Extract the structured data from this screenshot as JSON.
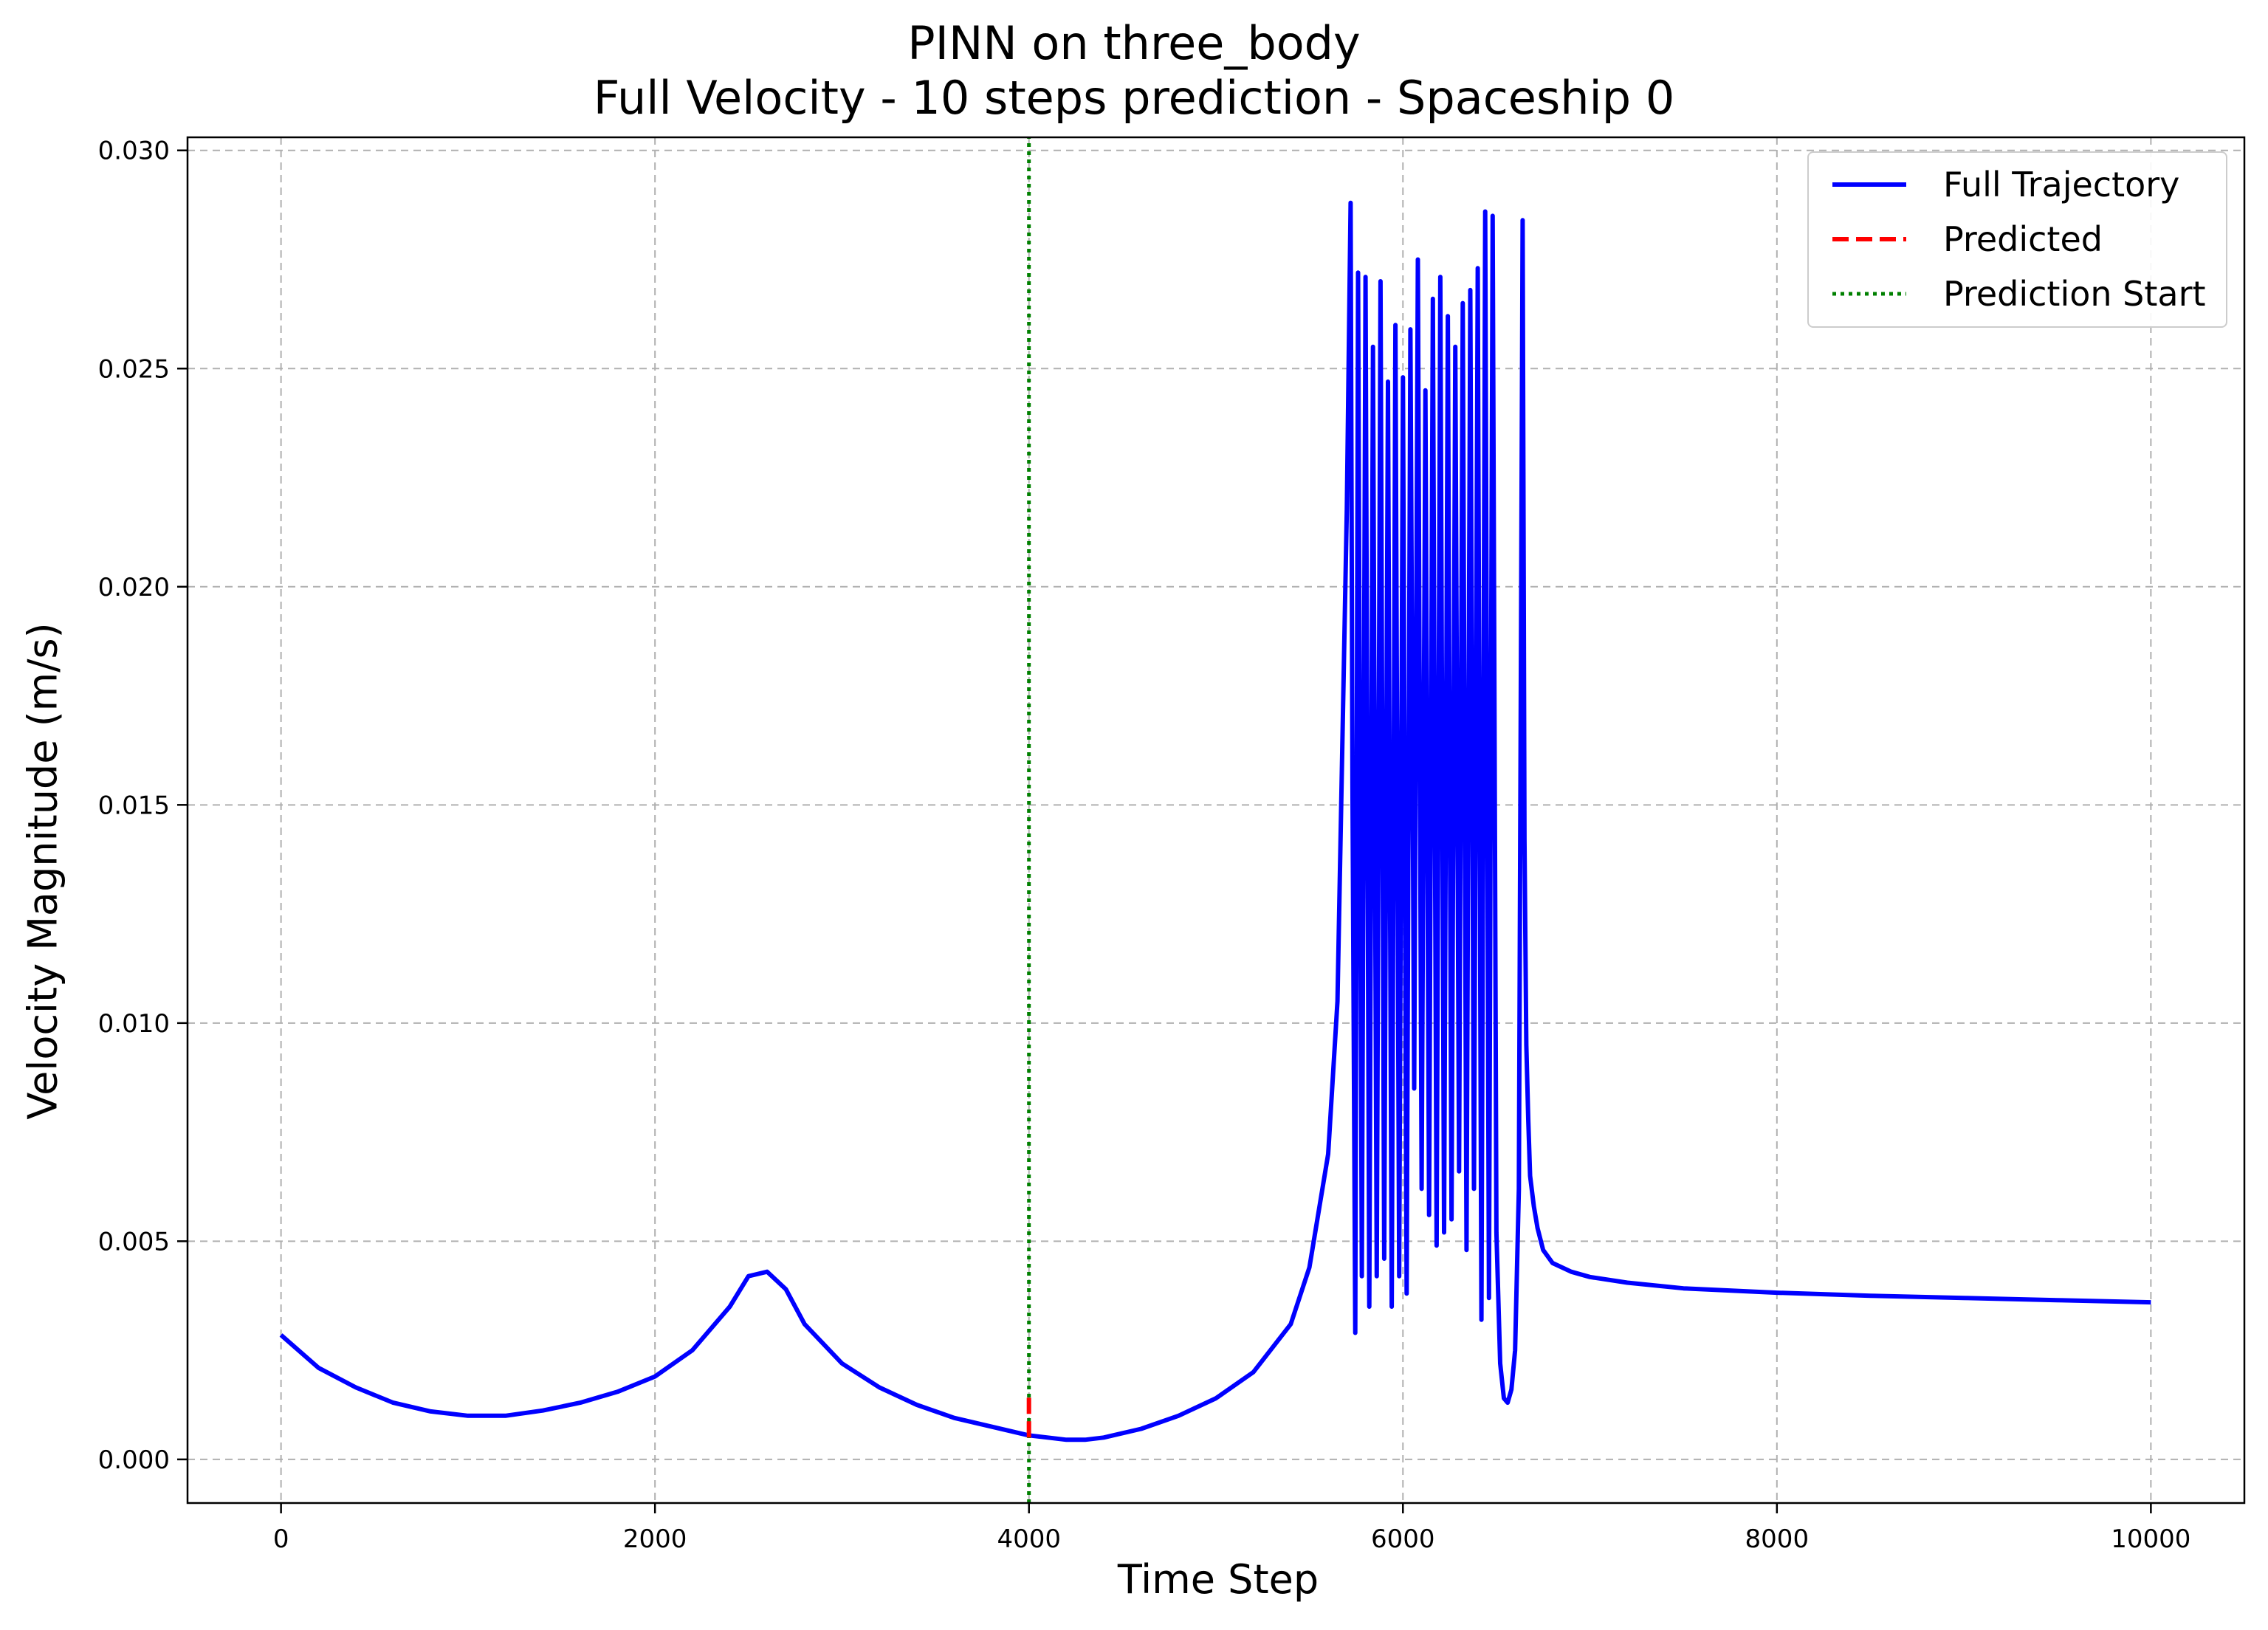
{
  "chart_data": {
    "type": "line",
    "title": "PINN on three_body",
    "subtitle": "Full Velocity - 10 steps prediction - Spaceship 0",
    "xlabel": "Time Step",
    "ylabel": "Velocity Magnitude (m/s)",
    "xlim": [
      -500,
      10500
    ],
    "ylim": [
      -0.001,
      0.0303
    ],
    "xticks": [
      0,
      2000,
      4000,
      6000,
      8000,
      10000
    ],
    "xtick_labels": [
      "0",
      "2000",
      "4000",
      "6000",
      "8000",
      "10000"
    ],
    "yticks": [
      0.0,
      0.005,
      0.01,
      0.015,
      0.02,
      0.025,
      0.03
    ],
    "ytick_labels": [
      "0.000",
      "0.005",
      "0.010",
      "0.015",
      "0.020",
      "0.025",
      "0.030"
    ],
    "grid": true,
    "legend_position": "top-right",
    "series": [
      {
        "name": "Full Trajectory",
        "style": "solid",
        "color": "#0000ff",
        "x": [
          0,
          200,
          400,
          600,
          800,
          1000,
          1200,
          1400,
          1600,
          1800,
          2000,
          2200,
          2400,
          2500,
          2600,
          2700,
          2800,
          3000,
          3200,
          3400,
          3600,
          3800,
          4000,
          4100,
          4200,
          4300,
          4400,
          4600,
          4800,
          5000,
          5200,
          5400,
          5500,
          5600,
          5650,
          5700,
          5720,
          5730,
          5745,
          5760,
          5780,
          5800,
          5820,
          5840,
          5860,
          5880,
          5900,
          5920,
          5940,
          5960,
          5980,
          6000,
          6020,
          6040,
          6060,
          6080,
          6100,
          6120,
          6140,
          6160,
          6180,
          6200,
          6220,
          6240,
          6260,
          6280,
          6300,
          6320,
          6340,
          6360,
          6380,
          6400,
          6420,
          6440,
          6460,
          6480,
          6500,
          6520,
          6540,
          6560,
          6580,
          6600,
          6620,
          6640,
          6650,
          6660,
          6670,
          6680,
          6700,
          6720,
          6750,
          6800,
          6900,
          7000,
          7200,
          7500,
          8000,
          8500,
          9000,
          9500,
          10000
        ],
        "y": [
          0.00285,
          0.0021,
          0.00165,
          0.0013,
          0.0011,
          0.001,
          0.001,
          0.00112,
          0.0013,
          0.00155,
          0.0019,
          0.0025,
          0.0035,
          0.0042,
          0.0043,
          0.0039,
          0.0031,
          0.0022,
          0.00165,
          0.00125,
          0.00095,
          0.00075,
          0.00055,
          0.0005,
          0.00045,
          0.00045,
          0.0005,
          0.0007,
          0.001,
          0.0014,
          0.002,
          0.0031,
          0.0044,
          0.007,
          0.0105,
          0.0218,
          0.0288,
          0.0155,
          0.0029,
          0.0272,
          0.0042,
          0.0271,
          0.0035,
          0.0255,
          0.0042,
          0.027,
          0.0046,
          0.0247,
          0.0035,
          0.026,
          0.0042,
          0.0248,
          0.0038,
          0.0259,
          0.0085,
          0.0275,
          0.0062,
          0.0245,
          0.0056,
          0.0266,
          0.0049,
          0.0271,
          0.0052,
          0.0262,
          0.0055,
          0.0255,
          0.0066,
          0.0265,
          0.0048,
          0.0268,
          0.0062,
          0.0273,
          0.0032,
          0.0286,
          0.0037,
          0.0285,
          0.0052,
          0.0022,
          0.0014,
          0.0013,
          0.0016,
          0.0025,
          0.0062,
          0.0284,
          0.0142,
          0.0095,
          0.0078,
          0.0065,
          0.0058,
          0.0053,
          0.0048,
          0.0045,
          0.0043,
          0.00418,
          0.00405,
          0.00392,
          0.00382,
          0.00375,
          0.0037,
          0.00365,
          0.0036
        ]
      },
      {
        "name": "Predicted",
        "style": "dashed",
        "color": "#ff0000",
        "x": [
          4000,
          4001,
          4002,
          4003,
          4004,
          4005,
          4006,
          4007,
          4008,
          4009,
          4010
        ],
        "y": [
          0.0005,
          0.0006,
          0.0007,
          0.0008,
          0.0009,
          0.001,
          0.0011,
          0.0012,
          0.0013,
          0.0014,
          0.0015
        ]
      },
      {
        "name": "Prediction Start",
        "style": "dotted",
        "color": "#008000",
        "x": [
          4000,
          4000
        ],
        "y": [
          -0.001,
          0.0303
        ]
      }
    ]
  }
}
